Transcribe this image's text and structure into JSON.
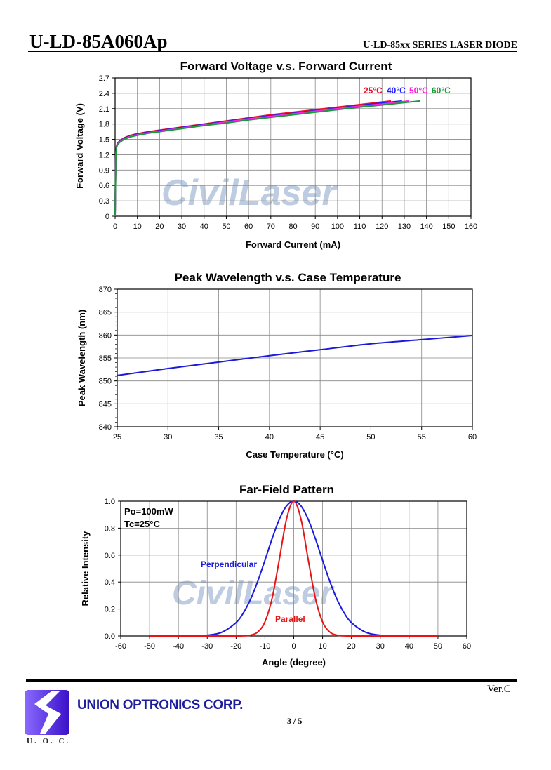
{
  "header": {
    "doc_title": "U-LD-85A060Ap",
    "series_title": "U-LD-85xx SERIES LASER DIODE"
  },
  "watermark": "CivilLaser",
  "footer": {
    "company": "UNION OPTRONICS CORP.",
    "logo_text": "U. O. C.",
    "page": "3 / 5",
    "version": "Ver.C"
  },
  "chart_data": [
    {
      "type": "line",
      "title": "Forward Voltage v.s. Forward Current",
      "xlabel": "Forward Current (mA)",
      "ylabel": "Forward Voltage (V)",
      "xlim": [
        0,
        160
      ],
      "ylim": [
        0,
        2.7
      ],
      "grid": true,
      "xticks": [
        "0",
        "10",
        "20",
        "30",
        "40",
        "50",
        "60",
        "70",
        "80",
        "90",
        "100",
        "110",
        "120",
        "130",
        "140",
        "150",
        "160"
      ],
      "yticks": [
        "0",
        "0.3",
        "0.6",
        "0.9",
        "1.2",
        "1.5",
        "1.8",
        "2.1",
        "2.4",
        "2.7"
      ],
      "legend_position": "top-right",
      "series": [
        {
          "name": "25°C",
          "color": "#e8102a",
          "x": [
            0,
            0.3,
            0.6,
            1,
            2,
            4,
            7,
            10,
            15,
            20,
            30,
            40,
            50,
            60,
            70,
            80,
            90,
            100,
            110,
            124
          ],
          "y": [
            0,
            1.2,
            1.36,
            1.42,
            1.47,
            1.53,
            1.58,
            1.61,
            1.65,
            1.68,
            1.74,
            1.8,
            1.86,
            1.92,
            1.98,
            2.03,
            2.08,
            2.13,
            2.18,
            2.25
          ]
        },
        {
          "name": "40°C",
          "color": "#1a1aff",
          "x": [
            0,
            0.3,
            0.6,
            1,
            2,
            4,
            7,
            10,
            15,
            20,
            30,
            40,
            50,
            60,
            70,
            80,
            90,
            100,
            110,
            120,
            129
          ],
          "y": [
            0,
            1.18,
            1.35,
            1.41,
            1.46,
            1.52,
            1.57,
            1.6,
            1.64,
            1.67,
            1.73,
            1.79,
            1.85,
            1.91,
            1.96,
            2.01,
            2.06,
            2.11,
            2.16,
            2.21,
            2.25
          ]
        },
        {
          "name": "50°C",
          "color": "#ff22dd",
          "x": [
            0,
            0.3,
            0.6,
            1,
            2,
            4,
            7,
            10,
            15,
            20,
            30,
            40,
            50,
            60,
            70,
            80,
            90,
            100,
            110,
            120,
            132
          ],
          "y": [
            0,
            1.17,
            1.34,
            1.4,
            1.45,
            1.51,
            1.56,
            1.59,
            1.63,
            1.66,
            1.72,
            1.78,
            1.84,
            1.9,
            1.95,
            2.0,
            2.05,
            2.1,
            2.15,
            2.19,
            2.25
          ]
        },
        {
          "name": "60°C",
          "color": "#1a9a3a",
          "x": [
            0,
            0.3,
            0.6,
            1,
            2,
            4,
            7,
            10,
            15,
            20,
            30,
            40,
            50,
            60,
            70,
            80,
            90,
            100,
            110,
            120,
            137
          ],
          "y": [
            0,
            1.15,
            1.33,
            1.39,
            1.44,
            1.5,
            1.55,
            1.58,
            1.62,
            1.65,
            1.71,
            1.77,
            1.82,
            1.88,
            1.93,
            1.98,
            2.03,
            2.08,
            2.13,
            2.17,
            2.25
          ]
        }
      ]
    },
    {
      "type": "line",
      "title": "Peak Wavelength v.s. Case Temperature",
      "xlabel": "Case Temperature (°C)",
      "ylabel": "Peak Wavelength (nm)",
      "xlim": [
        25,
        60
      ],
      "ylim": [
        840,
        870
      ],
      "grid": true,
      "xticks": [
        "25",
        "30",
        "35",
        "40",
        "45",
        "50",
        "55",
        "60"
      ],
      "yticks": [
        "840",
        "845",
        "850",
        "855",
        "860",
        "865",
        "870"
      ],
      "series": [
        {
          "name": "Peak wavelength",
          "color": "#1a1ad8",
          "x": [
            25,
            30,
            35,
            40,
            45,
            50,
            55,
            60
          ],
          "y": [
            851.2,
            852.7,
            854.1,
            855.5,
            856.8,
            858.1,
            859.0,
            859.9
          ]
        }
      ]
    },
    {
      "type": "line",
      "title": "Far-Field Pattern",
      "xlabel": "Angle (degree)",
      "ylabel": "Relative Intensity",
      "xlim": [
        -60,
        60
      ],
      "ylim": [
        0,
        1.0
      ],
      "grid": true,
      "xticks": [
        "-60",
        "-50",
        "-40",
        "-30",
        "-20",
        "-10",
        "0",
        "10",
        "20",
        "30",
        "40",
        "50",
        "60"
      ],
      "yticks": [
        "0.0",
        "0.2",
        "0.4",
        "0.6",
        "0.8",
        "1.0"
      ],
      "annotations": [
        "Po=100mW",
        "Tc=25°C"
      ],
      "series": [
        {
          "name": "Perpendicular",
          "color": "#1a1ae0",
          "x": [
            -50,
            -40,
            -35,
            -30,
            -25,
            -20,
            -17.5,
            -15,
            -12.5,
            -10,
            -7.5,
            -5,
            -2.5,
            0,
            2.5,
            5,
            7.5,
            10,
            12.5,
            15,
            17.5,
            20,
            25,
            30,
            35,
            40,
            50
          ],
          "y": [
            0,
            0,
            0.001,
            0.006,
            0.027,
            0.099,
            0.17,
            0.272,
            0.405,
            0.561,
            0.722,
            0.866,
            0.965,
            1.0,
            0.965,
            0.866,
            0.722,
            0.561,
            0.405,
            0.272,
            0.17,
            0.099,
            0.027,
            0.006,
            0.001,
            0,
            0
          ]
        },
        {
          "name": "Parallel",
          "color": "#e81414",
          "x": [
            -50,
            -40,
            -30,
            -20,
            -17.5,
            -15,
            -12.5,
            -10,
            -7.5,
            -5,
            -2.5,
            0,
            2.5,
            5,
            7.5,
            10,
            12.5,
            15,
            17.5,
            20,
            30,
            40,
            50
          ],
          "y": [
            0,
            0,
            0,
            0,
            0.001,
            0.006,
            0.029,
            0.104,
            0.28,
            0.568,
            0.868,
            1.0,
            0.868,
            0.568,
            0.28,
            0.104,
            0.029,
            0.006,
            0.001,
            0,
            0,
            0,
            0
          ]
        }
      ]
    }
  ]
}
